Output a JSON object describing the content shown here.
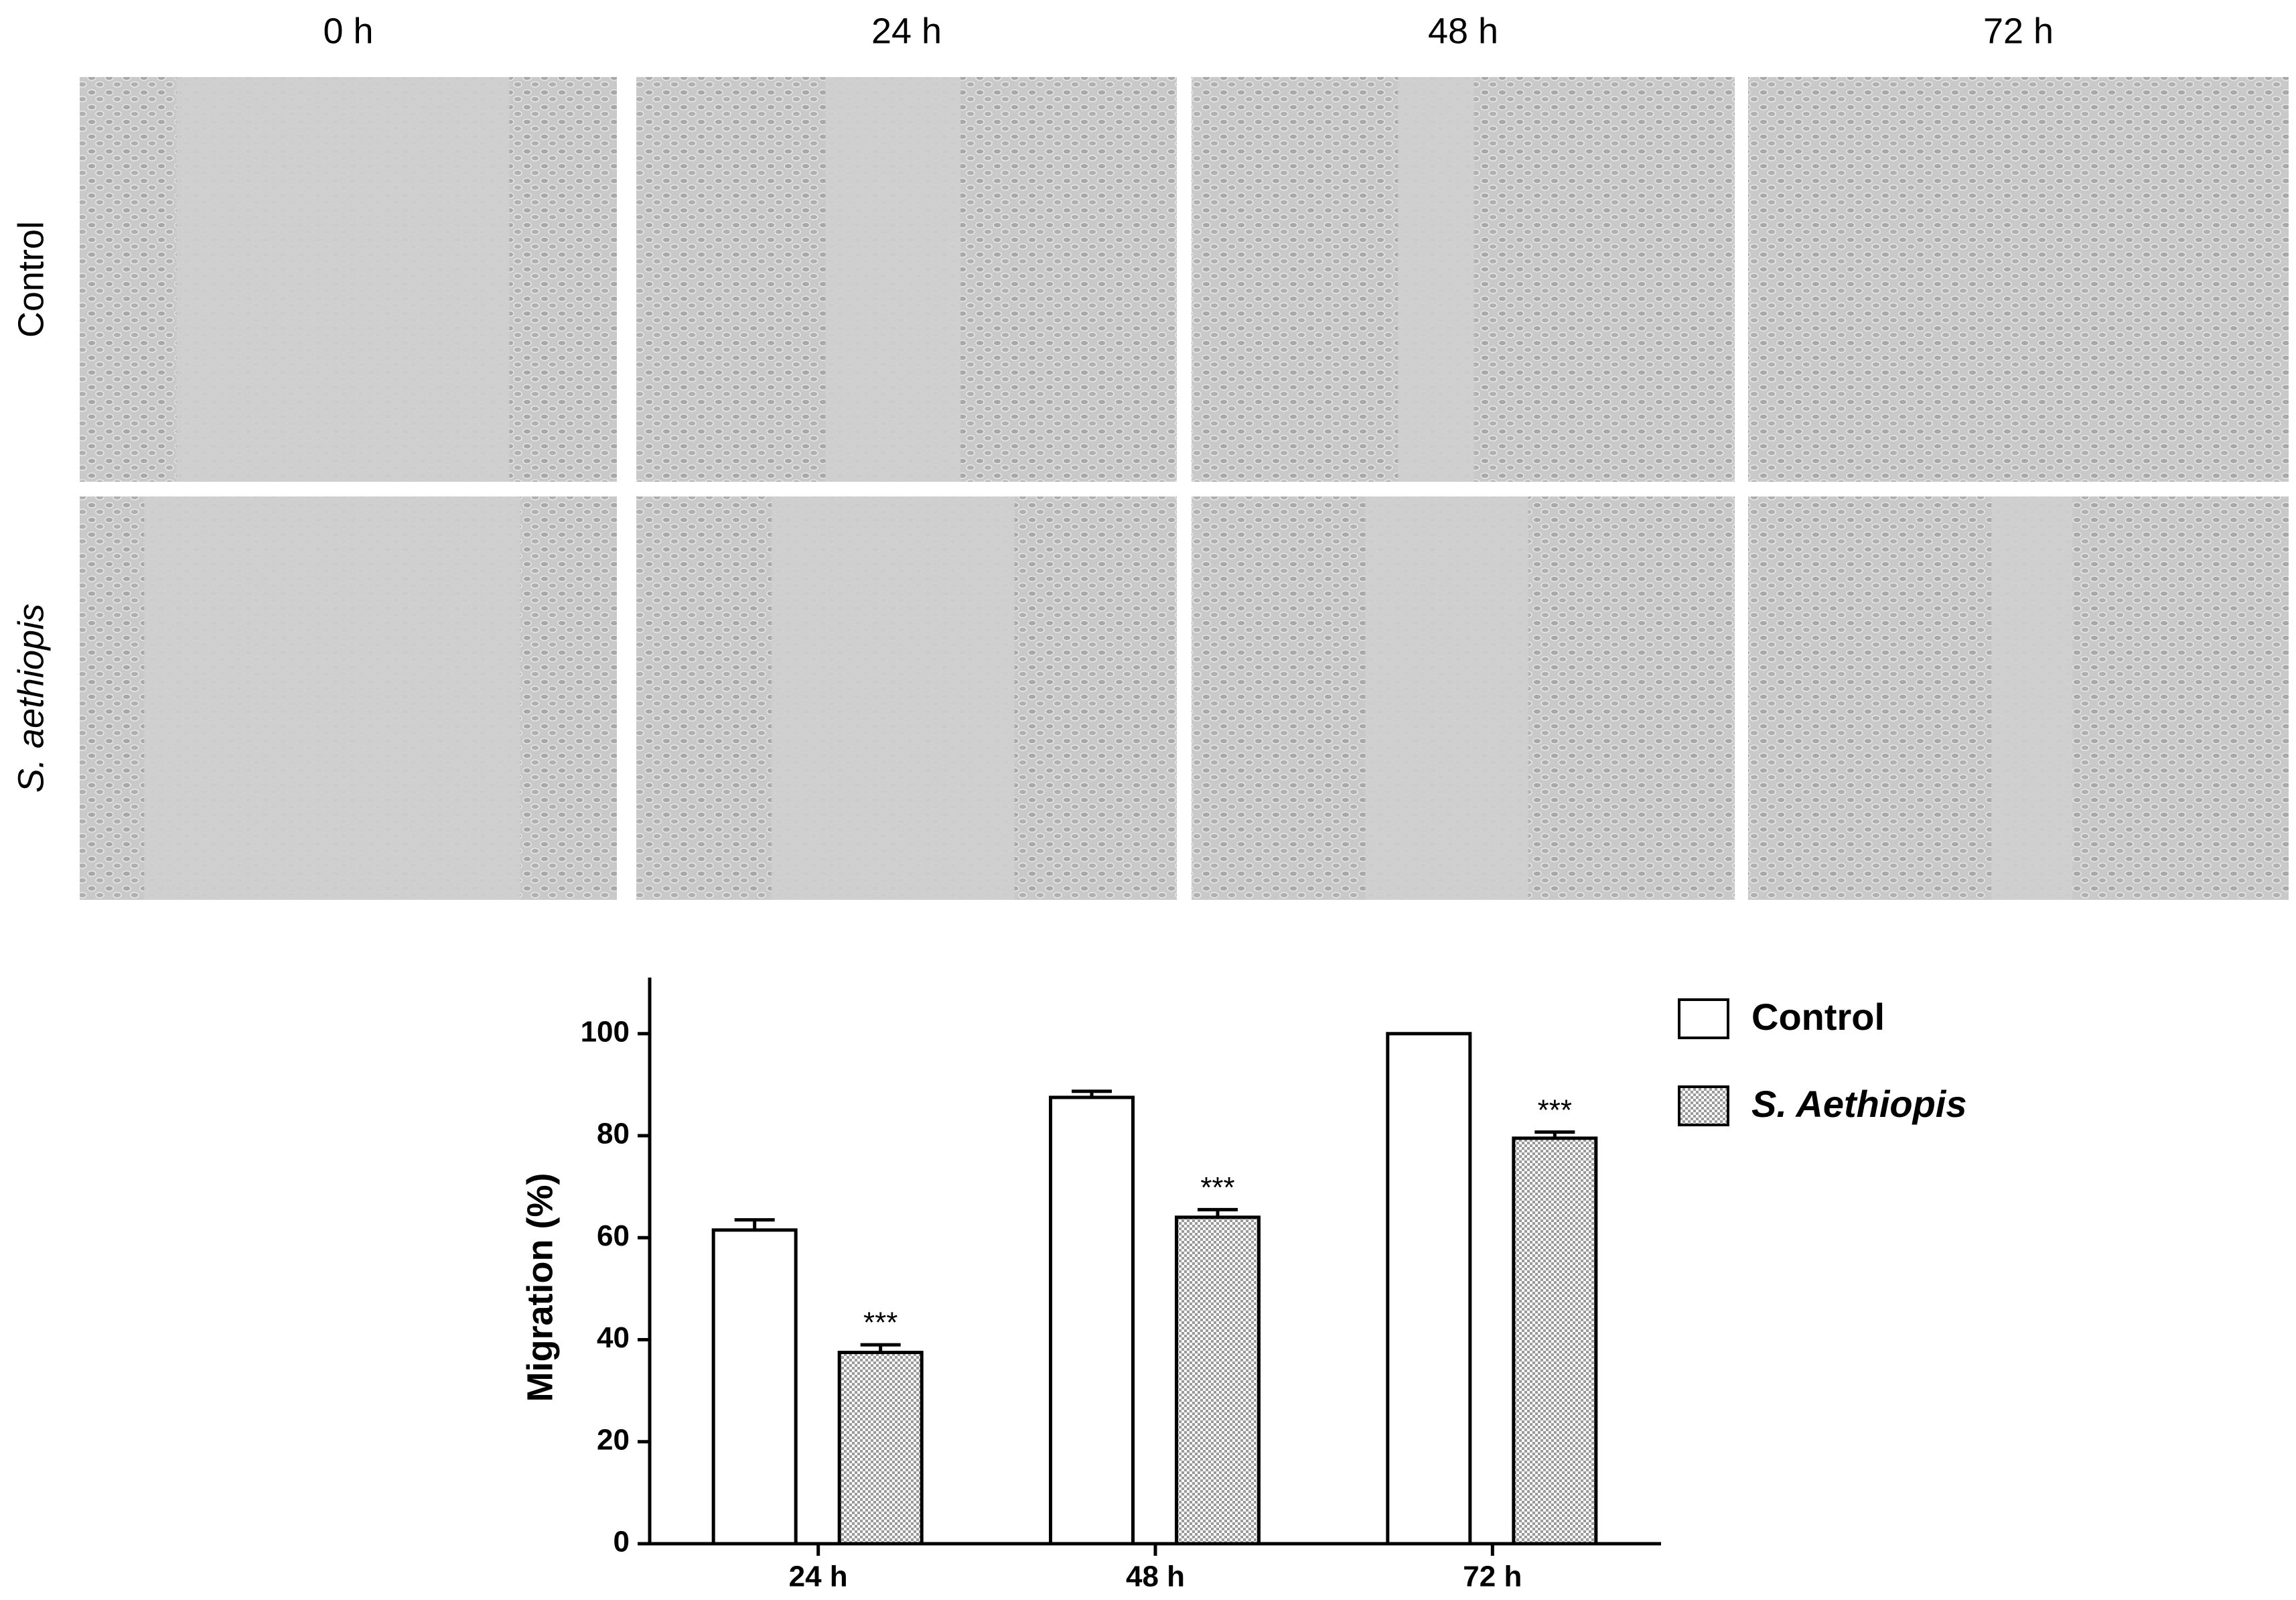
{
  "panels": {
    "columns": [
      "0 h",
      "24 h",
      "48 h",
      "72 h"
    ],
    "rows": [
      "Control",
      "S. aethiopis"
    ]
  },
  "chart_data": {
    "type": "bar",
    "ylabel": "Migration (%)",
    "categories": [
      "24 h",
      "48 h",
      "72 h"
    ],
    "series": [
      {
        "name": "Control",
        "color": "#ffffff",
        "values": [
          61.5,
          87.5,
          100
        ],
        "errors": [
          2,
          1.2,
          null
        ]
      },
      {
        "name": "S. Aethiopis",
        "color": "#b8b8b8",
        "values": [
          37.5,
          64,
          79.5
        ],
        "errors": [
          1.5,
          1.5,
          1.2
        ],
        "annotations": [
          "***",
          "***",
          "***"
        ]
      }
    ],
    "ylim": [
      0,
      111
    ],
    "yticks": [
      0,
      20,
      40,
      60,
      80,
      100
    ],
    "legend": "upper right"
  }
}
